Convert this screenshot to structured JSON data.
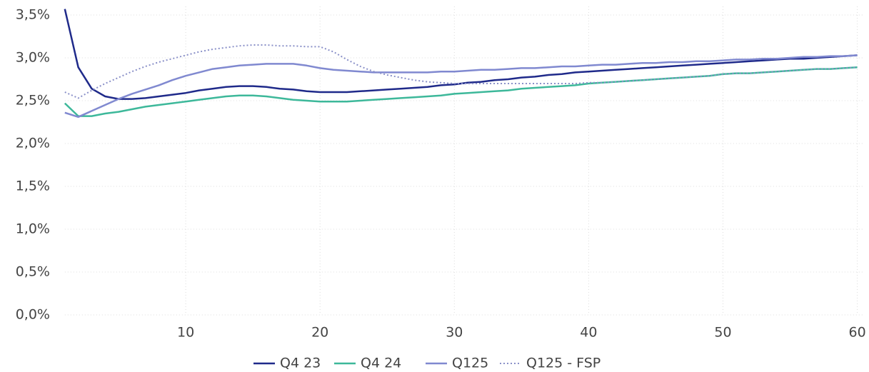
{
  "chart_data": {
    "type": "line",
    "x": [
      1,
      2,
      3,
      4,
      5,
      6,
      7,
      8,
      9,
      10,
      11,
      12,
      13,
      14,
      15,
      16,
      17,
      18,
      19,
      20,
      21,
      22,
      23,
      24,
      25,
      26,
      27,
      28,
      29,
      30,
      31,
      32,
      33,
      34,
      35,
      36,
      37,
      38,
      39,
      40,
      41,
      42,
      43,
      44,
      45,
      46,
      47,
      48,
      49,
      50,
      51,
      52,
      53,
      54,
      55,
      56,
      57,
      58,
      59,
      60
    ],
    "xlim": [
      1,
      60.5
    ],
    "xticks": [
      10,
      20,
      30,
      40,
      50,
      60
    ],
    "ylim": [
      0,
      3.6
    ],
    "yticks": [
      {
        "value": 0,
        "label": "0,0%"
      },
      {
        "value": 0.5,
        "label": "0,5%"
      },
      {
        "value": 1,
        "label": "1,0%"
      },
      {
        "value": 1.5,
        "label": "1,5%"
      },
      {
        "value": 2,
        "label": "2,0%"
      },
      {
        "value": 2.5,
        "label": "2,5%"
      },
      {
        "value": 3,
        "label": "3,0%"
      },
      {
        "value": 3.5,
        "label": "3,5%"
      }
    ],
    "grid": true,
    "legend": "bottom",
    "series": [
      {
        "name": "Q4 23",
        "color": "#1f2a8a",
        "values": [
          3.57,
          2.89,
          2.64,
          2.55,
          2.52,
          2.52,
          2.53,
          2.55,
          2.57,
          2.59,
          2.62,
          2.64,
          2.66,
          2.67,
          2.67,
          2.66,
          2.64,
          2.63,
          2.61,
          2.6,
          2.6,
          2.6,
          2.61,
          2.62,
          2.63,
          2.64,
          2.65,
          2.66,
          2.68,
          2.69,
          2.71,
          2.72,
          2.74,
          2.75,
          2.77,
          2.78,
          2.8,
          2.81,
          2.83,
          2.84,
          2.85,
          2.86,
          2.87,
          2.88,
          2.89,
          2.9,
          2.91,
          2.92,
          2.93,
          2.94,
          2.95,
          2.96,
          2.97,
          2.98,
          2.99,
          2.99,
          3.0,
          3.01,
          3.02,
          3.03
        ]
      },
      {
        "name": "Q4 24",
        "color": "#3db89a",
        "values": [
          2.47,
          2.32,
          2.32,
          2.35,
          2.37,
          2.4,
          2.43,
          2.45,
          2.47,
          2.49,
          2.51,
          2.53,
          2.55,
          2.56,
          2.56,
          2.55,
          2.53,
          2.51,
          2.5,
          2.49,
          2.49,
          2.49,
          2.5,
          2.51,
          2.52,
          2.53,
          2.54,
          2.55,
          2.56,
          2.58,
          2.59,
          2.6,
          2.61,
          2.62,
          2.64,
          2.65,
          2.66,
          2.67,
          2.68,
          2.7,
          2.71,
          2.72,
          2.73,
          2.74,
          2.75,
          2.76,
          2.77,
          2.78,
          2.79,
          2.81,
          2.82,
          2.82,
          2.83,
          2.84,
          2.85,
          2.86,
          2.87,
          2.87,
          2.88,
          2.89
        ]
      },
      {
        "name": "Q125",
        "color": "#8089d0",
        "values": [
          2.36,
          2.31,
          2.38,
          2.45,
          2.52,
          2.58,
          2.63,
          2.68,
          2.74,
          2.79,
          2.83,
          2.87,
          2.89,
          2.91,
          2.92,
          2.93,
          2.93,
          2.93,
          2.91,
          2.88,
          2.86,
          2.85,
          2.84,
          2.83,
          2.83,
          2.83,
          2.83,
          2.83,
          2.84,
          2.84,
          2.85,
          2.86,
          2.86,
          2.87,
          2.88,
          2.88,
          2.89,
          2.9,
          2.9,
          2.91,
          2.92,
          2.92,
          2.93,
          2.94,
          2.94,
          2.95,
          2.95,
          2.96,
          2.96,
          2.97,
          2.98,
          2.98,
          2.99,
          2.99,
          3.0,
          3.01,
          3.01,
          3.02,
          3.02,
          3.03
        ]
      },
      {
        "name": "Q125 - FSP",
        "color": "#8a90c8",
        "dash": "dotted",
        "values": [
          2.6,
          2.53,
          2.62,
          2.7,
          2.77,
          2.84,
          2.9,
          2.95,
          2.99,
          3.03,
          3.07,
          3.1,
          3.12,
          3.14,
          3.15,
          3.15,
          3.14,
          3.14,
          3.13,
          3.13,
          3.07,
          2.98,
          2.9,
          2.84,
          2.8,
          2.77,
          2.74,
          2.72,
          2.71,
          2.7,
          2.7,
          2.7,
          2.7,
          2.7,
          2.7,
          2.7,
          2.7,
          2.7,
          2.7,
          2.71,
          2.71,
          2.72,
          2.73,
          2.74,
          2.75,
          2.76,
          2.77,
          2.78,
          2.79,
          2.81,
          2.82,
          2.82,
          2.83,
          2.84,
          2.85,
          2.86,
          2.87,
          2.87,
          2.88,
          2.89
        ]
      }
    ]
  }
}
